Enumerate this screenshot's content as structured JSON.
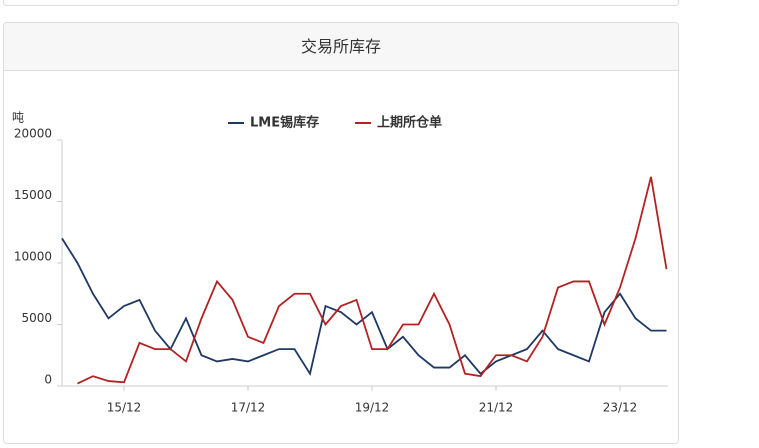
{
  "header": {
    "title": "交易所库存"
  },
  "chart_data": {
    "type": "line",
    "y_unit": "吨",
    "categories": [
      null,
      null,
      null,
      null,
      "15/12",
      null,
      null,
      null,
      null,
      null,
      null,
      null,
      "17/12",
      null,
      null,
      null,
      null,
      null,
      null,
      null,
      "19/12",
      null,
      null,
      null,
      null,
      null,
      null,
      null,
      "21/12",
      null,
      null,
      null,
      null,
      null,
      null,
      null,
      "23/12",
      null,
      null,
      null
    ],
    "series": [
      {
        "name": "LME锡库存",
        "color": "#1f3864",
        "values": [
          12000,
          10000,
          7500,
          5500,
          6500,
          7000,
          4500,
          3000,
          5500,
          2500,
          2000,
          2200,
          2000,
          2500,
          3000,
          3000,
          1000,
          6500,
          6000,
          5000,
          6000,
          3000,
          4000,
          2500,
          1500,
          1500,
          2500,
          1000,
          2000,
          2500,
          3000,
          4500,
          3000,
          2500,
          2000,
          6000,
          7500,
          5500,
          4500,
          4500
        ]
      },
      {
        "name": "上期所仓单",
        "color": "#b22222",
        "values": [
          null,
          200,
          800,
          400,
          300,
          3500,
          3000,
          3000,
          2000,
          5500,
          8500,
          7000,
          4000,
          3500,
          6500,
          7500,
          7500,
          5000,
          6500,
          7000,
          3000,
          3000,
          5000,
          5000,
          7500,
          5000,
          1000,
          800,
          2500,
          2500,
          2000,
          4000,
          8000,
          8500,
          8500,
          5000,
          8000,
          12000,
          17000,
          9500
        ]
      }
    ],
    "ylim": [
      0,
      20000
    ],
    "yticks": [
      0,
      5000,
      10000,
      15000,
      20000
    ]
  }
}
